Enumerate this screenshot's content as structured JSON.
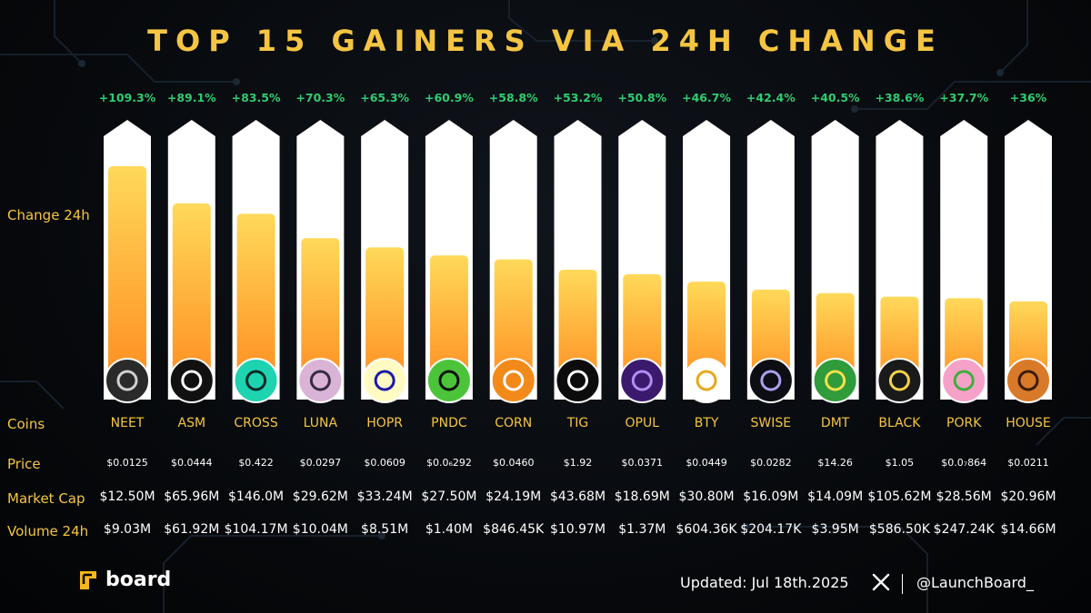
{
  "header": {
    "title": "TOP 15 GAINERS VIA 24H CHANGE"
  },
  "row_labels": {
    "change": "Change 24h",
    "coins": "Coins",
    "price": "Price",
    "market_cap": "Market Cap",
    "volume": "Volume 24h"
  },
  "chart_data": {
    "type": "bar",
    "categories": [
      "NEET",
      "ASM",
      "CROSS",
      "LUNA",
      "HOPR",
      "PNDC",
      "CORN",
      "TIG",
      "OPUL",
      "BTY",
      "SWISE",
      "DMT",
      "BLACK",
      "PORK",
      "HOUSE"
    ],
    "values": [
      109.3,
      89.1,
      83.5,
      70.3,
      65.3,
      60.9,
      58.8,
      53.2,
      50.8,
      46.7,
      42.4,
      40.5,
      38.6,
      37.7,
      36
    ],
    "value_labels": [
      "+109.3%",
      "+89.1%",
      "+83.5%",
      "+70.3%",
      "+65.3%",
      "+60.9%",
      "+58.8%",
      "+53.2%",
      "+50.8%",
      "+46.7%",
      "+42.4%",
      "+40.5%",
      "+38.6%",
      "+37.7%",
      "+36%"
    ],
    "ylabel": "Change 24h",
    "unit": "%"
  },
  "coins": [
    {
      "name": "NEET",
      "price": "$0.0125",
      "market_cap": "$12.50M",
      "volume": "$9.03M",
      "icon": "neet-face-icon",
      "icon_bg": "#2a2a2a",
      "icon_fg": "#d0d0d0"
    },
    {
      "name": "ASM",
      "price": "$0.0444",
      "market_cap": "$65.96M",
      "volume": "$61.92M",
      "icon": "asm-logo-icon",
      "icon_bg": "#111111",
      "icon_fg": "#ffffff"
    },
    {
      "name": "CROSS",
      "price": "$0.422",
      "market_cap": "$146.0M",
      "volume": "$104.17M",
      "icon": "cross-logo-icon",
      "icon_bg": "#1ed3b0",
      "icon_fg": "#0a2a28"
    },
    {
      "name": "LUNA",
      "price": "$0.0297",
      "market_cap": "$29.62M",
      "volume": "$10.04M",
      "icon": "luna-avatar-icon",
      "icon_bg": "#d9b4d6",
      "icon_fg": "#3a2a44"
    },
    {
      "name": "HOPR",
      "price": "$0.0609",
      "market_cap": "$33.24M",
      "volume": "$8.51M",
      "icon": "hopr-logo-icon",
      "icon_bg": "#fffbc2",
      "icon_fg": "#1a1aa8"
    },
    {
      "name": "PNDC",
      "price": "$0.0₆292",
      "market_cap": "$27.50M",
      "volume": "$1.40M",
      "icon": "pndc-logo-icon",
      "icon_bg": "#4cc43a",
      "icon_fg": "#111111"
    },
    {
      "name": "CORN",
      "price": "$0.0460",
      "market_cap": "$24.19M",
      "volume": "$846.45K",
      "icon": "corn-logo-icon",
      "icon_bg": "#f28a1a",
      "icon_fg": "#ffffff"
    },
    {
      "name": "TIG",
      "price": "$1.92",
      "market_cap": "$43.68M",
      "volume": "$10.97M",
      "icon": "tig-logo-icon",
      "icon_bg": "#0c0c0c",
      "icon_fg": "#ffffff"
    },
    {
      "name": "OPUL",
      "price": "$0.0371",
      "market_cap": "$18.69M",
      "volume": "$1.37M",
      "icon": "opul-logo-icon",
      "icon_bg": "#3b1a6e",
      "icon_fg": "#b48cf0"
    },
    {
      "name": "BTY",
      "price": "$0.0449",
      "market_cap": "$30.80M",
      "volume": "$604.36K",
      "icon": "bty-logo-icon",
      "icon_bg": "#ffffff",
      "icon_fg": "#e8a81c"
    },
    {
      "name": "SWISE",
      "price": "$0.0282",
      "market_cap": "$16.09M",
      "volume": "$204.17K",
      "icon": "swise-logo-icon",
      "icon_bg": "#0d0d14",
      "icon_fg": "#a8a0f0"
    },
    {
      "name": "DMT",
      "price": "$14.26",
      "market_cap": "$14.09M",
      "volume": "$3.95M",
      "icon": "dmt-avatar-icon",
      "icon_bg": "#2f9b3a",
      "icon_fg": "#f5e24a"
    },
    {
      "name": "BLACK",
      "price": "$1.05",
      "market_cap": "$105.62M",
      "volume": "$586.50K",
      "icon": "black-avatar-icon",
      "icon_bg": "#1a1a1a",
      "icon_fg": "#f2d24a"
    },
    {
      "name": "PORK",
      "price": "$0.0₇864",
      "market_cap": "$28.56M",
      "volume": "$247.24K",
      "icon": "pork-avatar-icon",
      "icon_bg": "#f6a2c8",
      "icon_fg": "#3fae3a"
    },
    {
      "name": "HOUSE",
      "price": "$0.0211",
      "market_cap": "$20.96M",
      "volume": "$14.66M",
      "icon": "house-logo-icon",
      "icon_bg": "#d97a2a",
      "icon_fg": "#3a1c08"
    }
  ],
  "footer": {
    "brand": "board",
    "updated": "Updated: Jul 18th.2025",
    "handle": "@LaunchBoard_"
  },
  "colors": {
    "title": "#f5c542",
    "label": "#f5c542",
    "change_positive": "#2ecc71",
    "bar_top": "#ffd95a",
    "bar_bottom": "#ff8a1f",
    "track": "#ffffff",
    "brand_icon": "#f5b81c"
  }
}
